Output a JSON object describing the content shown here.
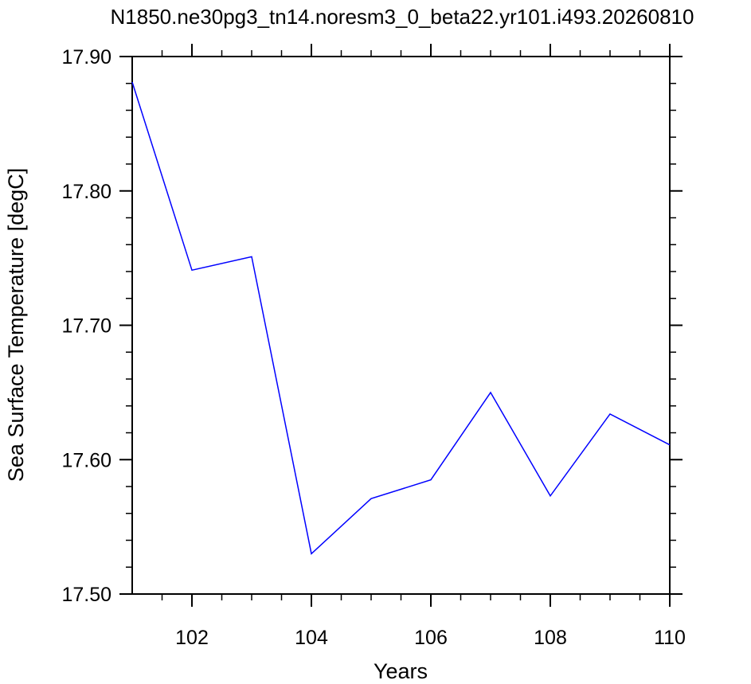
{
  "chart_data": {
    "type": "line",
    "title": "N1850.ne30pg3_tn14.noresm3_0_beta22.yr101.i493.20260810",
    "xlabel": "Years",
    "ylabel": "Sea Surface Temperature [degC]",
    "xlim": [
      101,
      110
    ],
    "ylim": [
      17.5,
      17.9
    ],
    "x_ticks": [
      102,
      104,
      106,
      108,
      110
    ],
    "x_tick_labels": [
      "102",
      "104",
      "106",
      "108",
      "110"
    ],
    "y_ticks": [
      17.5,
      17.6,
      17.7,
      17.8,
      17.9
    ],
    "y_tick_labels": [
      "17.50",
      "17.60",
      "17.70",
      "17.80",
      "17.90"
    ],
    "grid": false,
    "series": [
      {
        "color": "#0000ff",
        "x": [
          101,
          102,
          103,
          104,
          105,
          106,
          107,
          108,
          109,
          110
        ],
        "values": [
          17.881,
          17.741,
          17.751,
          17.53,
          17.571,
          17.585,
          17.65,
          17.573,
          17.634,
          17.611
        ]
      }
    ]
  }
}
